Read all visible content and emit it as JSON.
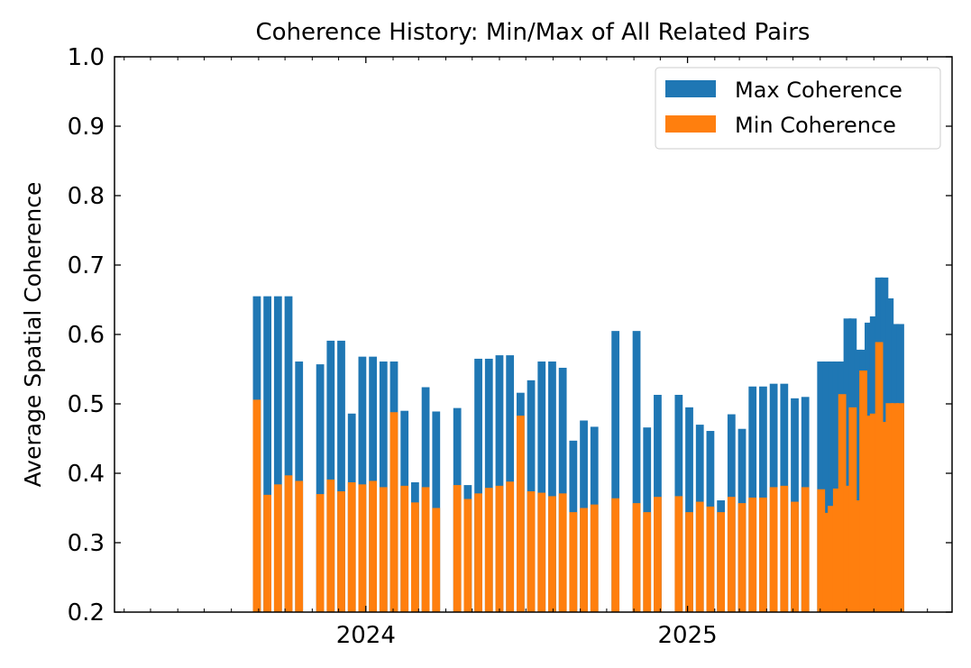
{
  "chart_data": {
    "type": "bar",
    "stacked_overlay": true,
    "title": "Coherence History: Min/Max of All Related Pairs",
    "xlabel": "",
    "ylabel": "Average Spatial Coherence",
    "ylim": [
      0.2,
      1.0
    ],
    "yticks": [
      "0.2",
      "0.3",
      "0.4",
      "0.5",
      "0.6",
      "0.7",
      "0.8",
      "0.9",
      "1.0"
    ],
    "xlim": [
      "2023-03-21",
      "2025-10-29"
    ],
    "xticks": [
      {
        "date": "2024-01-01",
        "label": "2024"
      },
      {
        "date": "2025-01-01",
        "label": "2025"
      }
    ],
    "legend": {
      "position": "top-right",
      "entries": [
        {
          "label": "Max Coherence",
          "color": "#1f77b4"
        },
        {
          "label": "Min Coherence",
          "color": "#ff7f0e"
        }
      ]
    },
    "colors": {
      "max": "#1f77b4",
      "min": "#ff7f0e"
    },
    "bar_width_days": 9,
    "grid": false,
    "series": [
      {
        "name": "Max Coherence",
        "x": [
          "2023-08-30",
          "2023-09-11",
          "2023-09-23",
          "2023-10-05",
          "2023-10-17",
          "2023-11-10",
          "2023-11-22",
          "2023-12-04",
          "2023-12-16",
          "2023-12-28",
          "2024-01-09",
          "2024-01-21",
          "2024-02-02",
          "2024-02-14",
          "2024-02-26",
          "2024-03-09",
          "2024-03-21",
          "2024-04-14",
          "2024-04-26",
          "2024-05-08",
          "2024-05-20",
          "2024-06-01",
          "2024-06-13",
          "2024-06-25",
          "2024-07-07",
          "2024-07-19",
          "2024-07-31",
          "2024-08-12",
          "2024-08-24",
          "2024-09-05",
          "2024-09-17",
          "2024-10-11",
          "2024-11-04",
          "2024-11-16",
          "2024-11-28",
          "2024-12-22",
          "2025-01-03",
          "2025-01-15",
          "2025-01-27",
          "2025-02-08",
          "2025-02-20",
          "2025-03-04",
          "2025-03-16",
          "2025-03-28",
          "2025-04-09",
          "2025-04-21",
          "2025-05-03",
          "2025-05-15",
          "2025-06-02",
          "2025-06-08",
          "2025-06-14",
          "2025-06-20",
          "2025-06-26",
          "2025-07-02",
          "2025-07-08",
          "2025-07-14",
          "2025-07-20",
          "2025-07-26",
          "2025-08-01",
          "2025-08-07",
          "2025-08-13",
          "2025-08-19",
          "2025-08-25",
          "2025-08-31"
        ],
        "values": [
          0.655,
          0.655,
          0.655,
          0.655,
          0.561,
          0.557,
          0.591,
          0.591,
          0.486,
          0.568,
          0.568,
          0.561,
          0.561,
          0.49,
          0.387,
          0.524,
          0.489,
          0.494,
          0.383,
          0.565,
          0.565,
          0.57,
          0.57,
          0.516,
          0.534,
          0.561,
          0.561,
          0.552,
          0.447,
          0.476,
          0.467,
          0.605,
          0.605,
          0.466,
          0.513,
          0.513,
          0.495,
          0.47,
          0.461,
          0.361,
          0.485,
          0.464,
          0.525,
          0.525,
          0.529,
          0.529,
          0.508,
          0.51,
          0.561,
          0.561,
          0.561,
          0.561,
          0.561,
          0.623,
          0.623,
          0.578,
          0.578,
          0.617,
          0.626,
          0.682,
          0.682,
          0.652,
          0.615,
          0.615
        ]
      },
      {
        "name": "Min Coherence",
        "x": [
          "2023-08-30",
          "2023-09-11",
          "2023-09-23",
          "2023-10-05",
          "2023-10-17",
          "2023-11-10",
          "2023-11-22",
          "2023-12-04",
          "2023-12-16",
          "2023-12-28",
          "2024-01-09",
          "2024-01-21",
          "2024-02-02",
          "2024-02-14",
          "2024-02-26",
          "2024-03-09",
          "2024-03-21",
          "2024-04-14",
          "2024-04-26",
          "2024-05-08",
          "2024-05-20",
          "2024-06-01",
          "2024-06-13",
          "2024-06-25",
          "2024-07-07",
          "2024-07-19",
          "2024-07-31",
          "2024-08-12",
          "2024-08-24",
          "2024-09-05",
          "2024-09-17",
          "2024-10-11",
          "2024-11-04",
          "2024-11-16",
          "2024-11-28",
          "2024-12-22",
          "2025-01-03",
          "2025-01-15",
          "2025-01-27",
          "2025-02-08",
          "2025-02-20",
          "2025-03-04",
          "2025-03-16",
          "2025-03-28",
          "2025-04-09",
          "2025-04-21",
          "2025-05-03",
          "2025-05-15",
          "2025-06-02",
          "2025-06-08",
          "2025-06-14",
          "2025-06-20",
          "2025-06-26",
          "2025-07-02",
          "2025-07-08",
          "2025-07-14",
          "2025-07-20",
          "2025-07-26",
          "2025-08-01",
          "2025-08-07",
          "2025-08-13",
          "2025-08-19",
          "2025-08-25",
          "2025-08-31"
        ],
        "values": [
          0.506,
          0.369,
          0.384,
          0.397,
          0.389,
          0.37,
          0.391,
          0.374,
          0.387,
          0.384,
          0.389,
          0.38,
          0.488,
          0.382,
          0.358,
          0.38,
          0.35,
          0.383,
          0.363,
          0.371,
          0.379,
          0.382,
          0.388,
          0.483,
          0.374,
          0.372,
          0.367,
          0.371,
          0.344,
          0.35,
          0.355,
          0.364,
          0.357,
          0.344,
          0.366,
          0.367,
          0.344,
          0.359,
          0.352,
          0.344,
          0.366,
          0.357,
          0.365,
          0.365,
          0.38,
          0.382,
          0.359,
          0.38,
          0.377,
          0.343,
          0.353,
          0.378,
          0.514,
          0.382,
          0.495,
          0.361,
          0.548,
          0.483,
          0.486,
          0.589,
          0.474,
          0.501,
          0.501,
          0.501
        ]
      }
    ]
  }
}
